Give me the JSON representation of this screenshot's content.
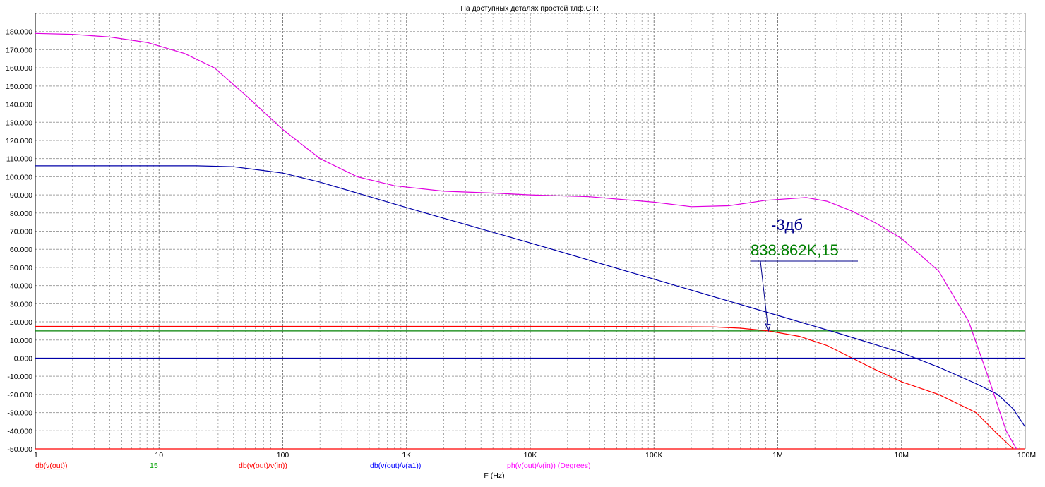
{
  "chart_data": {
    "type": "line",
    "title": "На доступных деталях простой   тлф.CIR",
    "xlabel": "F (Hz)",
    "xscale": "log",
    "xlim": [
      1,
      100000000
    ],
    "ylim": [
      -50,
      190
    ],
    "grid": true,
    "x_ticks": [
      {
        "value": 1,
        "label": "1"
      },
      {
        "value": 10,
        "label": "10"
      },
      {
        "value": 100,
        "label": "100"
      },
      {
        "value": 1000,
        "label": "1K"
      },
      {
        "value": 10000,
        "label": "10K"
      },
      {
        "value": 100000,
        "label": "100K"
      },
      {
        "value": 1000000,
        "label": "1M"
      },
      {
        "value": 10000000,
        "label": "10M"
      },
      {
        "value": 100000000,
        "label": "100M"
      }
    ],
    "y_ticks": [
      {
        "value": 180,
        "label": "180.000"
      },
      {
        "value": 170,
        "label": "170.000"
      },
      {
        "value": 160,
        "label": "160.000"
      },
      {
        "value": 150,
        "label": "150.000"
      },
      {
        "value": 140,
        "label": "140.000"
      },
      {
        "value": 130,
        "label": "130.000"
      },
      {
        "value": 120,
        "label": "120.000"
      },
      {
        "value": 110,
        "label": "110.000"
      },
      {
        "value": 100,
        "label": "100.000"
      },
      {
        "value": 90,
        "label": "90.000"
      },
      {
        "value": 80,
        "label": "80.000"
      },
      {
        "value": 70,
        "label": "70.000"
      },
      {
        "value": 60,
        "label": "60.000"
      },
      {
        "value": 50,
        "label": "50.000"
      },
      {
        "value": 40,
        "label": "40.000"
      },
      {
        "value": 30,
        "label": "30.000"
      },
      {
        "value": 20,
        "label": "20.000"
      },
      {
        "value": 10,
        "label": "10.000"
      },
      {
        "value": 0,
        "label": "0.000"
      },
      {
        "value": -10,
        "label": "-10.000"
      },
      {
        "value": -20,
        "label": "-20.000"
      },
      {
        "value": -30,
        "label": "-30.000"
      },
      {
        "value": -40,
        "label": "-40.000"
      },
      {
        "value": -50,
        "label": "-50.000"
      }
    ],
    "series": [
      {
        "name": "db(v(out))",
        "color": "#ff0000",
        "legend_color": "#ff0000",
        "x": [
          1,
          100000000
        ],
        "y": [
          -50,
          -50
        ]
      },
      {
        "name": "15",
        "color": "#008000",
        "legend_color": "#00a000",
        "x": [
          1,
          100000000
        ],
        "y": [
          15,
          15
        ]
      },
      {
        "name": "db(v(out)/v(in))",
        "color": "#ff0000",
        "legend_color": "#ff0000",
        "x": [
          1,
          10,
          100,
          1000,
          10000,
          100000,
          300000,
          500000,
          838862,
          1500000,
          2500000,
          4000000,
          6000000,
          10000000,
          20000000,
          40000000,
          60000000,
          80000000
        ],
        "y": [
          17.5,
          17.5,
          17.5,
          17.5,
          17.5,
          17.4,
          17.2,
          16.5,
          15,
          12,
          7,
          0,
          -6,
          -13,
          -20,
          -30,
          -42,
          -50
        ]
      },
      {
        "name": "db(v(out)/v(a1))",
        "color": "#0000a8",
        "legend_color": "#0000ff",
        "x": [
          1,
          10,
          20,
          40,
          60,
          100,
          200,
          400,
          1000,
          10000,
          100000,
          1000000,
          3000000,
          10000000,
          20000000,
          40000000,
          60000000,
          80000000,
          100000000
        ],
        "y": [
          106,
          106,
          106,
          105.5,
          104,
          102,
          97,
          91,
          83,
          63.5,
          43.5,
          23.5,
          14,
          3,
          -5,
          -14,
          -20,
          -28,
          -38
        ]
      },
      {
        "name": "ph(v(out)/v(in)) (Degrees)",
        "color": "#e000e0",
        "legend_color": "#ff00ff",
        "x": [
          1,
          2,
          4,
          8,
          16,
          28,
          50,
          100,
          200,
          400,
          800,
          2000,
          5000,
          10000,
          30000,
          100000,
          200000,
          400000,
          800000,
          1700000,
          2500000,
          4000000,
          6000000,
          10000000,
          20000000,
          35000000,
          50000000,
          70000000,
          85000000
        ],
        "y": [
          179,
          178.5,
          177,
          174,
          168,
          160,
          145,
          126,
          110,
          100,
          95,
          92,
          91,
          90,
          89,
          86,
          83.5,
          84,
          87,
          88.5,
          86.5,
          81,
          75,
          66,
          48,
          20,
          -10,
          -40,
          -50
        ]
      }
    ],
    "annotation": {
      "label_top": "-3дб",
      "label_top_color": "#00008b",
      "label_value": "838.862K,15",
      "label_value_color": "#008000",
      "point": {
        "x": 838862,
        "y": 15
      }
    }
  }
}
